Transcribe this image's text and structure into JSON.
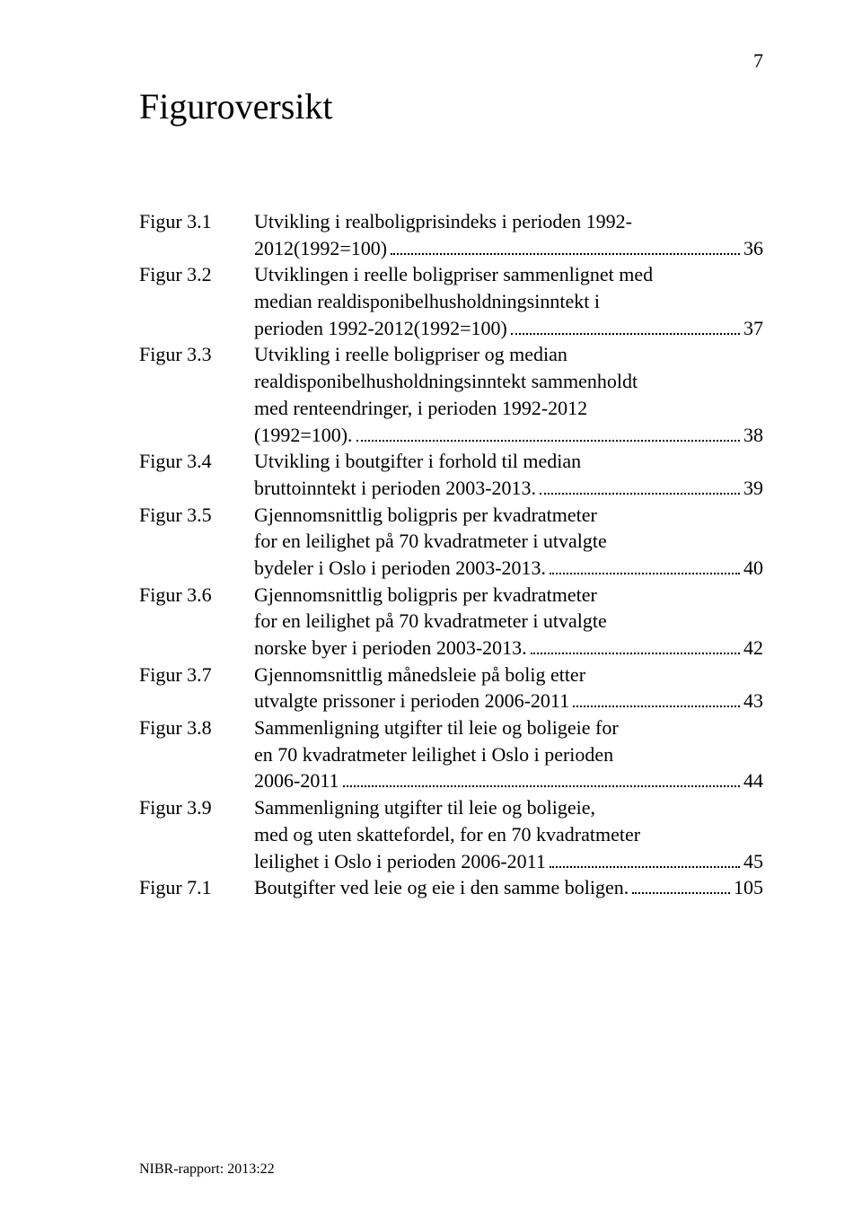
{
  "page_number": "7",
  "title": "Figuroversikt",
  "footer": "NIBR-rapport: 2013:22",
  "font_family": "Garamond, 'Times New Roman', serif",
  "colors": {
    "text": "#000000",
    "background": "#ffffff"
  },
  "entries": [
    {
      "label": "Figur 3.1",
      "lines": [
        "Utvikling i realboligprisindeks i perioden 1992-"
      ],
      "last": "2012(1992=100)",
      "page": "36"
    },
    {
      "label": "Figur 3.2",
      "lines": [
        "Utviklingen i reelle boligpriser sammenlignet med",
        "median realdisponibelhusholdningsinntekt i"
      ],
      "last": "perioden 1992-2012(1992=100)",
      "page": "37"
    },
    {
      "label": "Figur 3.3",
      "lines": [
        "Utvikling i reelle boligpriser og median",
        "realdisponibelhusholdningsinntekt sammenholdt",
        "med renteendringer, i perioden 1992-2012"
      ],
      "last": "(1992=100).",
      "page": "38"
    },
    {
      "label": "Figur 3.4",
      "lines": [
        "Utvikling i boutgifter i forhold til median"
      ],
      "last": "bruttoinntekt i perioden 2003-2013.",
      "page": "39"
    },
    {
      "label": "Figur 3.5",
      "lines": [
        "Gjennomsnittlig boligpris per kvadratmeter",
        "for en leilighet på 70 kvadratmeter i utvalgte"
      ],
      "last": "bydeler i Oslo i perioden 2003-2013.",
      "page": "40"
    },
    {
      "label": "Figur 3.6",
      "lines": [
        "Gjennomsnittlig boligpris per kvadratmeter",
        "for en leilighet på 70 kvadratmeter i utvalgte"
      ],
      "last": "norske byer i perioden 2003-2013.",
      "page": "42"
    },
    {
      "label": "Figur 3.7",
      "lines": [
        "Gjennomsnittlig månedsleie på bolig etter"
      ],
      "last": "utvalgte prissoner i perioden 2006-2011",
      "page": "43"
    },
    {
      "label": "Figur 3.8",
      "lines": [
        "Sammenligning utgifter til leie og boligeie for",
        "en 70 kvadratmeter leilighet i Oslo i perioden"
      ],
      "last": "2006-2011",
      "page": "44"
    },
    {
      "label": "Figur 3.9",
      "lines": [
        "Sammenligning utgifter til leie og boligeie,",
        "med og uten skattefordel, for en 70 kvadratmeter"
      ],
      "last": "leilighet i Oslo i perioden 2006-2011",
      "page": "45"
    },
    {
      "label": "Figur 7.1",
      "lines": [],
      "last": "Boutgifter ved leie og eie i den samme boligen.",
      "page": "105"
    }
  ]
}
